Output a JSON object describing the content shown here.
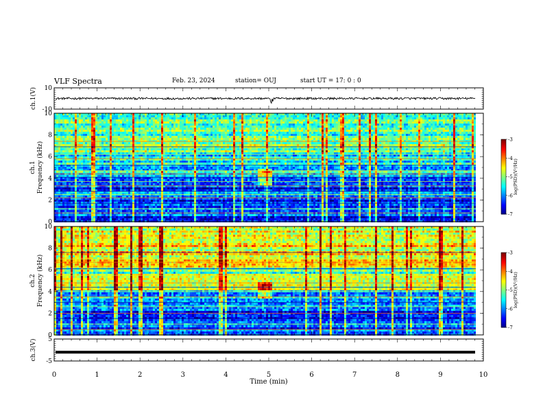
{
  "header": {
    "title": "VLF Spectra",
    "date": "Feb. 23, 2024",
    "station": "station= OUJ",
    "start": "start  UT =   17: 0  : 0"
  },
  "chart_data": [
    {
      "type": "line",
      "name": "ch1-waveform",
      "ylabel": "ch.1(V)",
      "ylim": [
        -10,
        10
      ],
      "yticks": [
        "10",
        "-10"
      ],
      "xlim": [
        0,
        10
      ],
      "baseline": 0,
      "noise_amplitude": 1
    },
    {
      "type": "heatmap",
      "name": "ch1-spectrogram",
      "ylabel": "ch.1 Frequency (kHz)",
      "ylim": [
        0,
        10
      ],
      "yticks": [
        "0",
        "2",
        "4",
        "6",
        "8",
        "10"
      ],
      "xlim": [
        0,
        10
      ],
      "colorbar": {
        "label": "log(PSD)(V²/Hz)",
        "range": [
          -7,
          -3
        ],
        "ticks": [
          "-3",
          "-4",
          "-5",
          "-6",
          "-7"
        ]
      }
    },
    {
      "type": "heatmap",
      "name": "ch2-spectrogram",
      "ylabel": "ch.2 Frequency (kHz)",
      "ylim": [
        0,
        10
      ],
      "yticks": [
        "0",
        "2",
        "4",
        "6",
        "8",
        "10"
      ],
      "xlim": [
        0,
        10
      ],
      "colorbar": {
        "label": "log(PSD)(V²/Hz)",
        "range": [
          -7,
          -3
        ],
        "ticks": [
          "-3",
          "-4",
          "-5",
          "-6",
          "-7"
        ]
      }
    },
    {
      "type": "line",
      "name": "ch3-waveform",
      "ylabel": "ch.3(V)",
      "ylim": [
        -5,
        5
      ],
      "yticks": [
        "5",
        "-5"
      ],
      "xlim": [
        0,
        10
      ],
      "baseline": -1
    }
  ],
  "xaxis": {
    "label": "Time  (min)",
    "ticks": [
      "0",
      "1",
      "2",
      "3",
      "4",
      "5",
      "6",
      "7",
      "8",
      "9",
      "10"
    ]
  }
}
